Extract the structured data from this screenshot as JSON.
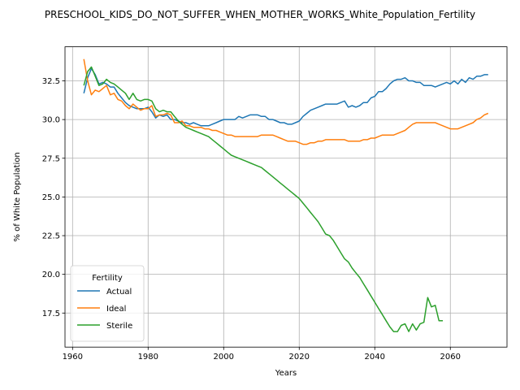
{
  "chart_data": {
    "type": "line",
    "title": "PRESCHOOL_KIDS_DO_NOT_SUFFER_WHEN_MOTHER_WORKS_White_Population_Fertility",
    "xlabel": "Years",
    "ylabel": "% of White Population",
    "xlim": [
      1958,
      2075
    ],
    "ylim": [
      15.3,
      34.7
    ],
    "xticks": [
      1960,
      1980,
      2000,
      2020,
      2040,
      2060
    ],
    "yticks": [
      17.5,
      20.0,
      22.5,
      25.0,
      27.5,
      30.0,
      32.5
    ],
    "grid": true,
    "legend": {
      "title": "Fertility",
      "position": "lower-left"
    },
    "series": [
      {
        "name": "Actual",
        "color": "#1f77b4",
        "x": [
          1963,
          1964,
          1965,
          1966,
          1967,
          1968,
          1969,
          1970,
          1971,
          1972,
          1973,
          1974,
          1975,
          1976,
          1977,
          1978,
          1979,
          1980,
          1981,
          1982,
          1983,
          1984,
          1985,
          1986,
          1987,
          1988,
          1989,
          1990,
          1991,
          1992,
          1993,
          1994,
          1995,
          1996,
          1997,
          1998,
          1999,
          2000,
          2001,
          2002,
          2003,
          2004,
          2005,
          2006,
          2007,
          2008,
          2009,
          2010,
          2011,
          2012,
          2013,
          2014,
          2015,
          2016,
          2017,
          2018,
          2019,
          2020,
          2021,
          2022,
          2023,
          2024,
          2025,
          2026,
          2027,
          2028,
          2029,
          2030,
          2031,
          2032,
          2033,
          2034,
          2035,
          2036,
          2037,
          2038,
          2039,
          2040,
          2041,
          2042,
          2043,
          2044,
          2045,
          2046,
          2047,
          2048,
          2049,
          2050,
          2051,
          2052,
          2053,
          2054,
          2055,
          2056,
          2057,
          2058,
          2059,
          2060,
          2061,
          2062,
          2063,
          2064,
          2065,
          2066,
          2067,
          2068,
          2069,
          2070
        ],
        "y": [
          31.7,
          32.7,
          33.3,
          32.9,
          32.3,
          32.4,
          32.3,
          32.1,
          32.1,
          31.7,
          31.4,
          31.1,
          30.9,
          30.8,
          30.7,
          30.7,
          30.7,
          30.8,
          30.5,
          30.1,
          30.3,
          30.2,
          30.3,
          30.0,
          30.0,
          29.9,
          29.8,
          29.8,
          29.7,
          29.8,
          29.7,
          29.6,
          29.6,
          29.6,
          29.7,
          29.8,
          29.9,
          30.0,
          30.0,
          30.0,
          30.0,
          30.2,
          30.1,
          30.2,
          30.3,
          30.3,
          30.3,
          30.2,
          30.2,
          30.0,
          30.0,
          29.9,
          29.8,
          29.8,
          29.7,
          29.7,
          29.8,
          29.9,
          30.2,
          30.4,
          30.6,
          30.7,
          30.8,
          30.9,
          31.0,
          31.0,
          31.0,
          31.0,
          31.1,
          31.2,
          30.8,
          30.9,
          30.8,
          30.9,
          31.1,
          31.1,
          31.4,
          31.5,
          31.8,
          31.8,
          32.0,
          32.3,
          32.5,
          32.6,
          32.6,
          32.7,
          32.5,
          32.5,
          32.4,
          32.4,
          32.2,
          32.2,
          32.2,
          32.1,
          32.2,
          32.3,
          32.4,
          32.3,
          32.5,
          32.3,
          32.6,
          32.4,
          32.7,
          32.6,
          32.8,
          32.8,
          32.9,
          32.9
        ]
      },
      {
        "name": "Ideal",
        "color": "#ff7f0e",
        "x": [
          1963,
          1964,
          1965,
          1966,
          1967,
          1968,
          1969,
          1970,
          1971,
          1972,
          1973,
          1974,
          1975,
          1976,
          1977,
          1978,
          1979,
          1980,
          1981,
          1982,
          1983,
          1984,
          1985,
          1986,
          1987,
          1988,
          1989,
          1990,
          1991,
          1992,
          1993,
          1994,
          1995,
          1996,
          1997,
          1998,
          1999,
          2000,
          2001,
          2002,
          2003,
          2004,
          2005,
          2006,
          2007,
          2008,
          2009,
          2010,
          2011,
          2012,
          2013,
          2014,
          2015,
          2016,
          2017,
          2018,
          2019,
          2020,
          2021,
          2022,
          2023,
          2024,
          2025,
          2026,
          2027,
          2028,
          2029,
          2030,
          2031,
          2032,
          2033,
          2034,
          2035,
          2036,
          2037,
          2038,
          2039,
          2040,
          2041,
          2042,
          2043,
          2044,
          2045,
          2046,
          2047,
          2048,
          2049,
          2050,
          2051,
          2052,
          2053,
          2054,
          2055,
          2056,
          2057,
          2058,
          2059,
          2060,
          2061,
          2062,
          2063,
          2064,
          2065,
          2066,
          2067,
          2068,
          2069,
          2070
        ],
        "y": [
          33.9,
          32.5,
          31.6,
          31.9,
          31.8,
          32.0,
          32.2,
          31.6,
          31.7,
          31.3,
          31.2,
          30.9,
          30.7,
          31.0,
          30.8,
          30.6,
          30.7,
          30.7,
          30.9,
          30.2,
          30.3,
          30.3,
          30.4,
          30.3,
          29.8,
          29.8,
          29.9,
          29.6,
          29.6,
          29.5,
          29.5,
          29.5,
          29.4,
          29.4,
          29.3,
          29.3,
          29.2,
          29.1,
          29.0,
          29.0,
          28.9,
          28.9,
          28.9,
          28.9,
          28.9,
          28.9,
          28.9,
          29.0,
          29.0,
          29.0,
          29.0,
          28.9,
          28.8,
          28.7,
          28.6,
          28.6,
          28.6,
          28.5,
          28.4,
          28.4,
          28.5,
          28.5,
          28.6,
          28.6,
          28.7,
          28.7,
          28.7,
          28.7,
          28.7,
          28.7,
          28.6,
          28.6,
          28.6,
          28.6,
          28.7,
          28.7,
          28.8,
          28.8,
          28.9,
          29.0,
          29.0,
          29.0,
          29.0,
          29.1,
          29.2,
          29.3,
          29.5,
          29.7,
          29.8,
          29.8,
          29.8,
          29.8,
          29.8,
          29.8,
          29.7,
          29.6,
          29.5,
          29.4,
          29.4,
          29.4,
          29.5,
          29.6,
          29.7,
          29.8,
          30.0,
          30.1,
          30.3,
          30.4
        ]
      },
      {
        "name": "Sterile",
        "color": "#2ca02c",
        "x": [
          1963,
          1964,
          1965,
          1966,
          1967,
          1968,
          1969,
          1970,
          1971,
          1972,
          1973,
          1974,
          1975,
          1976,
          1977,
          1978,
          1979,
          1980,
          1981,
          1982,
          1983,
          1984,
          1985,
          1986,
          1987,
          1988,
          1989,
          1990,
          1991,
          1992,
          1993,
          1994,
          1995,
          1996,
          1997,
          1998,
          1999,
          2000,
          2001,
          2002,
          2003,
          2004,
          2005,
          2006,
          2007,
          2008,
          2009,
          2010,
          2011,
          2012,
          2013,
          2014,
          2015,
          2016,
          2017,
          2018,
          2019,
          2020,
          2021,
          2022,
          2023,
          2024,
          2025,
          2026,
          2027,
          2028,
          2029,
          2030,
          2031,
          2032,
          2033,
          2034,
          2035,
          2036,
          2037,
          2038,
          2039,
          2040,
          2041,
          2042,
          2043,
          2044,
          2045,
          2046,
          2047,
          2048,
          2049,
          2050,
          2051,
          2052,
          2053,
          2054,
          2055,
          2056,
          2057,
          2058,
          2059,
          2060,
          2061
        ],
        "y": [
          32.2,
          33.1,
          33.4,
          32.8,
          32.2,
          32.3,
          32.6,
          32.4,
          32.3,
          32.1,
          31.9,
          31.7,
          31.3,
          31.7,
          31.3,
          31.2,
          31.3,
          31.3,
          31.2,
          30.7,
          30.5,
          30.6,
          30.5,
          30.5,
          30.2,
          29.9,
          29.7,
          29.5,
          29.4,
          29.3,
          29.2,
          29.1,
          29.0,
          28.9,
          28.7,
          28.5,
          28.3,
          28.1,
          27.9,
          27.7,
          27.6,
          27.5,
          27.4,
          27.3,
          27.2,
          27.1,
          27.0,
          26.9,
          26.7,
          26.5,
          26.3,
          26.1,
          25.9,
          25.7,
          25.5,
          25.3,
          25.1,
          24.9,
          24.6,
          24.3,
          24.0,
          23.7,
          23.4,
          23.0,
          22.6,
          22.5,
          22.2,
          21.8,
          21.4,
          21.0,
          20.8,
          20.4,
          20.1,
          19.8,
          19.4,
          19.0,
          18.6,
          18.2,
          17.8,
          17.4,
          17.0,
          16.6,
          16.3,
          16.3,
          16.7,
          16.8,
          16.3,
          16.8,
          16.4,
          16.8,
          16.9,
          18.5,
          17.9,
          18.0,
          17.0,
          17.0,
          17.0,
          17.0,
          17.0
        ],
        "y_trim": 96
      }
    ]
  }
}
